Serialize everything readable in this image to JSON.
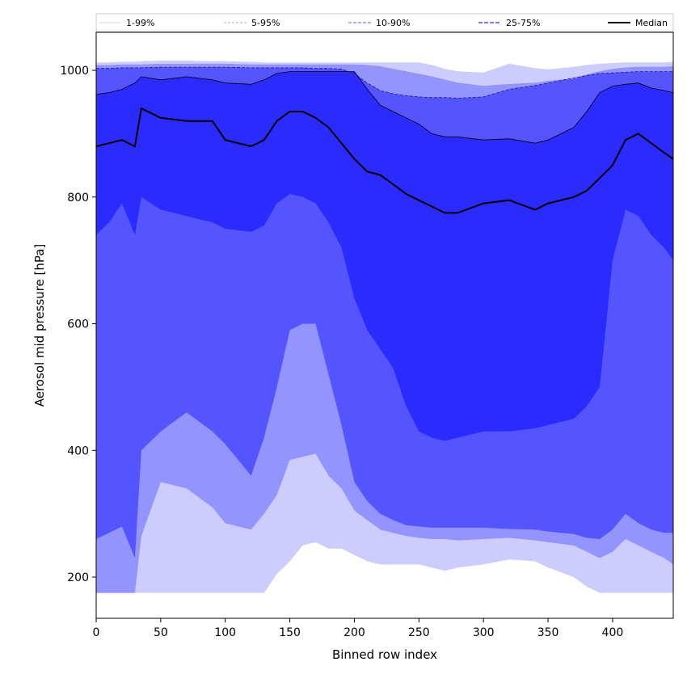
{
  "chart_data": {
    "type": "area",
    "title": "",
    "xlabel": "Binned row index",
    "ylabel": "Aerosol mid pressure [hPa]",
    "xlim": [
      0,
      447
    ],
    "ylim": [
      135,
      1060
    ],
    "xticks": [
      0,
      50,
      100,
      150,
      200,
      250,
      300,
      350,
      400
    ],
    "yticks": [
      200,
      400,
      600,
      800,
      1000
    ],
    "grid": false,
    "legend_position": "top",
    "colors": {
      "band_1_99": "#ccccff",
      "band_5_95": "#9494ff",
      "band_10_90": "#5555ff",
      "band_25_75": "#2b2bff",
      "median": "#000000",
      "legend_line_1_99": "#c8c8ee",
      "legend_line_5_95": "#8f8fdf",
      "legend_line_10_90": "#5a5af0",
      "legend_line_25_75": "#2b2bd8"
    },
    "legend": [
      "1-99%",
      "5-95%",
      "10-90%",
      "25-75%",
      "Median"
    ],
    "x": [
      0,
      10,
      20,
      30,
      35,
      50,
      70,
      90,
      100,
      120,
      130,
      140,
      150,
      160,
      170,
      180,
      190,
      200,
      210,
      220,
      230,
      240,
      250,
      260,
      270,
      280,
      300,
      320,
      340,
      350,
      370,
      380,
      390,
      400,
      410,
      420,
      430,
      440,
      447
    ],
    "series": [
      {
        "name": "1-99%",
        "lower": [
          175,
          175,
          175,
          175,
          175,
          175,
          175,
          175,
          175,
          175,
          175,
          205,
          225,
          250,
          255,
          245,
          245,
          235,
          225,
          220,
          220,
          220,
          220,
          215,
          210,
          215,
          220,
          228,
          225,
          215,
          200,
          185,
          175,
          175,
          175,
          175,
          175,
          175,
          175
        ],
        "upper": [
          1012,
          1012,
          1013,
          1013,
          1014,
          1015,
          1015,
          1014,
          1014,
          1013,
          1012,
          1012,
          1012,
          1012,
          1012,
          1012,
          1012,
          1012,
          1012,
          1012,
          1012,
          1012,
          1012,
          1008,
          1002,
          998,
          996,
          1010,
          1003,
          1001,
          1005,
          1008,
          1010,
          1011,
          1012,
          1012,
          1012,
          1012,
          1013
        ]
      },
      {
        "name": "5-95%",
        "lower": [
          175,
          175,
          175,
          175,
          265,
          350,
          340,
          310,
          285,
          275,
          300,
          330,
          385,
          390,
          395,
          360,
          340,
          305,
          290,
          275,
          270,
          265,
          262,
          260,
          260,
          258,
          260,
          262,
          258,
          255,
          250,
          240,
          230,
          240,
          260,
          250,
          240,
          230,
          220
        ],
        "upper": [
          1008,
          1008,
          1009,
          1009,
          1009,
          1010,
          1010,
          1010,
          1010,
          1009,
          1009,
          1009,
          1009,
          1009,
          1009,
          1009,
          1009,
          1009,
          1008,
          1006,
          1002,
          998,
          994,
          990,
          985,
          980,
          975,
          978,
          980,
          983,
          987,
          993,
          998,
          1002,
          1004,
          1005,
          1005,
          1005,
          1006
        ]
      },
      {
        "name": "10-90%",
        "lower": [
          260,
          270,
          280,
          230,
          400,
          430,
          460,
          430,
          410,
          360,
          420,
          500,
          590,
          600,
          600,
          520,
          440,
          350,
          320,
          300,
          290,
          282,
          280,
          278,
          278,
          278,
          278,
          276,
          275,
          272,
          268,
          262,
          260,
          275,
          300,
          285,
          275,
          270,
          270
        ],
        "upper": [
          1003,
          1003,
          1004,
          1004,
          1004,
          1005,
          1005,
          1005,
          1005,
          1004,
          1004,
          1004,
          1004,
          1004,
          1003,
          1003,
          1002,
          995,
          980,
          968,
          963,
          960,
          958,
          957,
          957,
          956,
          958,
          970,
          976,
          980,
          988,
          992,
          995,
          996,
          997,
          998,
          998,
          998,
          998
        ]
      },
      {
        "name": "25-75%",
        "lower": [
          740,
          760,
          790,
          740,
          800,
          780,
          770,
          760,
          750,
          745,
          755,
          790,
          805,
          800,
          790,
          760,
          720,
          640,
          590,
          560,
          530,
          470,
          430,
          420,
          415,
          420,
          430,
          430,
          435,
          440,
          450,
          470,
          500,
          700,
          780,
          770,
          740,
          720,
          700
        ],
        "upper": [
          962,
          965,
          970,
          980,
          990,
          985,
          990,
          985,
          980,
          978,
          985,
          995,
          998,
          998,
          998,
          998,
          998,
          998,
          970,
          945,
          935,
          925,
          915,
          900,
          895,
          895,
          890,
          892,
          885,
          890,
          910,
          935,
          965,
          975,
          978,
          980,
          972,
          968,
          965
        ]
      },
      {
        "name": "Median",
        "values": [
          880,
          885,
          890,
          880,
          940,
          925,
          920,
          920,
          890,
          880,
          890,
          920,
          935,
          935,
          925,
          910,
          885,
          860,
          840,
          835,
          820,
          805,
          795,
          785,
          775,
          775,
          790,
          795,
          780,
          790,
          800,
          810,
          830,
          850,
          890,
          900,
          885,
          870,
          860
        ]
      }
    ]
  }
}
